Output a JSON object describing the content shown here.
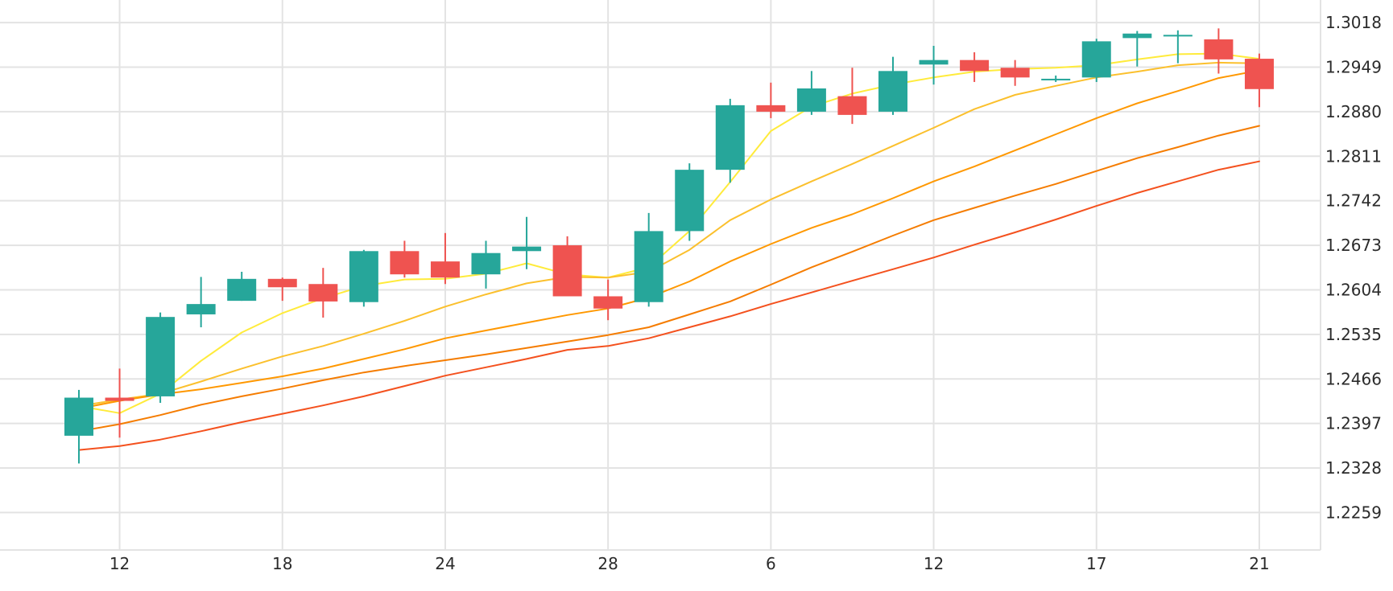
{
  "chart_data": {
    "type": "candlestick",
    "title": "",
    "grid": true,
    "y_axis_position": "right",
    "ylim": [
      1.2201,
      1.3053
    ],
    "y_ticks": [
      "1.3018",
      "1.2949",
      "1.2880",
      "1.2811",
      "1.2742",
      "1.2673",
      "1.2604",
      "1.2535",
      "1.2466",
      "1.2397",
      "1.2328",
      "1.2259"
    ],
    "x_tick_labels": [
      {
        "label": "12",
        "index": 1
      },
      {
        "label": "18",
        "index": 5
      },
      {
        "label": "24",
        "index": 9
      },
      {
        "label": "28",
        "index": 13
      },
      {
        "label": "6",
        "index": 17
      },
      {
        "label": "12",
        "index": 21
      },
      {
        "label": "17",
        "index": 25
      },
      {
        "label": "21",
        "index": 29
      }
    ],
    "colors": {
      "up": "#26a69a",
      "down": "#ef5350",
      "grid": "#e3e3e3",
      "ma_fast": "#ffeb3b",
      "ma_2": "#fbc02d",
      "ma_3": "#ff9800",
      "ma_4": "#f57c00",
      "ma_slow": "#f4511e"
    },
    "candles": [
      {
        "o": 1.2378,
        "h": 1.2449,
        "l": 1.2335,
        "c": 1.2437
      },
      {
        "o": 1.2437,
        "h": 1.2482,
        "l": 1.2375,
        "c": 1.2432
      },
      {
        "o": 1.2439,
        "h": 1.2569,
        "l": 1.2429,
        "c": 1.2562
      },
      {
        "o": 1.2566,
        "h": 1.2624,
        "l": 1.2546,
        "c": 1.2582
      },
      {
        "o": 1.2587,
        "h": 1.2632,
        "l": 1.2587,
        "c": 1.2621
      },
      {
        "o": 1.2621,
        "h": 1.2623,
        "l": 1.2587,
        "c": 1.2608
      },
      {
        "o": 1.2613,
        "h": 1.2638,
        "l": 1.2561,
        "c": 1.2586
      },
      {
        "o": 1.2585,
        "h": 1.2666,
        "l": 1.2578,
        "c": 1.2664
      },
      {
        "o": 1.2664,
        "h": 1.268,
        "l": 1.2623,
        "c": 1.2628
      },
      {
        "o": 1.2648,
        "h": 1.2692,
        "l": 1.2613,
        "c": 1.2623
      },
      {
        "o": 1.2628,
        "h": 1.268,
        "l": 1.2606,
        "c": 1.2661
      },
      {
        "o": 1.2664,
        "h": 1.2717,
        "l": 1.2636,
        "c": 1.2671
      },
      {
        "o": 1.2673,
        "h": 1.2687,
        "l": 1.2594,
        "c": 1.2594
      },
      {
        "o": 1.2594,
        "h": 1.262,
        "l": 1.2557,
        "c": 1.2575
      },
      {
        "o": 1.2585,
        "h": 1.2723,
        "l": 1.2578,
        "c": 1.2695
      },
      {
        "o": 1.2695,
        "h": 1.28,
        "l": 1.268,
        "c": 1.279
      },
      {
        "o": 1.279,
        "h": 1.29,
        "l": 1.277,
        "c": 1.289
      },
      {
        "o": 1.289,
        "h": 1.2925,
        "l": 1.287,
        "c": 1.288
      },
      {
        "o": 1.288,
        "h": 1.2943,
        "l": 1.2875,
        "c": 1.2916
      },
      {
        "o": 1.2904,
        "h": 1.2948,
        "l": 1.2861,
        "c": 1.2875
      },
      {
        "o": 1.288,
        "h": 1.2965,
        "l": 1.2875,
        "c": 1.2943
      },
      {
        "o": 1.2953,
        "h": 1.2982,
        "l": 1.2922,
        "c": 1.296
      },
      {
        "o": 1.296,
        "h": 1.2972,
        "l": 1.2926,
        "c": 1.2943
      },
      {
        "o": 1.2948,
        "h": 1.296,
        "l": 1.292,
        "c": 1.2933
      },
      {
        "o": 1.2931,
        "h": 1.2936,
        "l": 1.2926,
        "c": 1.2931
      },
      {
        "o": 1.2933,
        "h": 1.2993,
        "l": 1.2926,
        "c": 1.2989
      },
      {
        "o": 1.2994,
        "h": 1.3005,
        "l": 1.295,
        "c": 1.3001
      },
      {
        "o": 1.2999,
        "h": 1.3006,
        "l": 1.2955,
        "c": 1.2999
      },
      {
        "o": 1.2992,
        "h": 1.3009,
        "l": 1.2939,
        "c": 1.2961
      },
      {
        "o": 1.2962,
        "h": 1.297,
        "l": 1.2887,
        "c": 1.2915
      }
    ],
    "moving_averages": [
      {
        "color_key": "ma_fast",
        "start_index": 0,
        "values": [
          1.2424,
          1.2413,
          1.2443,
          1.2494,
          1.2538,
          1.2568,
          1.2591,
          1.261,
          1.262,
          1.2621,
          1.2629,
          1.2645,
          1.2628,
          1.2623,
          1.2639,
          1.2695,
          1.2771,
          1.285,
          1.2888,
          1.2908,
          1.2922,
          1.2933,
          1.2942,
          1.2946,
          1.2948,
          1.2952,
          1.2961,
          1.2969,
          1.297,
          1.2962
        ]
      },
      {
        "color_key": "ma_2",
        "start_index": 0,
        "values": [
          1.2424,
          1.2434,
          1.2443,
          1.2462,
          1.2482,
          1.2501,
          1.2517,
          1.2536,
          1.2556,
          1.2578,
          1.2597,
          1.2614,
          1.2624,
          1.2623,
          1.2632,
          1.2666,
          1.2712,
          1.2744,
          1.2772,
          1.2799,
          1.2827,
          1.2855,
          1.2884,
          1.2906,
          1.292,
          1.2933,
          1.2942,
          1.2952,
          1.2956,
          1.2955
        ]
      },
      {
        "color_key": "ma_3",
        "start_index": 0,
        "values": [
          1.242,
          1.2432,
          1.2442,
          1.245,
          1.246,
          1.247,
          1.2482,
          1.2497,
          1.2512,
          1.2529,
          1.2541,
          1.2553,
          1.2565,
          1.2575,
          1.2592,
          1.2617,
          1.2648,
          1.2675,
          1.27,
          1.2721,
          1.2746,
          1.2772,
          1.2795,
          1.282,
          1.2845,
          1.287,
          1.2893,
          1.2912,
          1.2932,
          1.2944
        ]
      },
      {
        "color_key": "ma_4",
        "start_index": 0,
        "values": [
          1.2385,
          1.2396,
          1.241,
          1.2426,
          1.2439,
          1.2451,
          1.2464,
          1.2476,
          1.2486,
          1.2495,
          1.2504,
          1.2514,
          1.2524,
          1.2534,
          1.2546,
          1.2566,
          1.2586,
          1.2612,
          1.2639,
          1.2663,
          1.2688,
          1.2712,
          1.2731,
          1.275,
          1.2768,
          1.2788,
          1.2808,
          1.2825,
          1.2843,
          1.2858
        ]
      },
      {
        "color_key": "ma_slow",
        "start_index": 0,
        "values": [
          1.2356,
          1.2362,
          1.2372,
          1.2385,
          1.2399,
          1.2412,
          1.2425,
          1.2439,
          1.2455,
          1.2471,
          1.2484,
          1.2497,
          1.2511,
          1.2517,
          1.2529,
          1.2546,
          1.2563,
          1.2582,
          1.26,
          1.2618,
          1.2636,
          1.2654,
          1.2674,
          1.2693,
          1.2713,
          1.2734,
          1.2754,
          1.2772,
          1.279,
          1.2803
        ]
      }
    ]
  }
}
